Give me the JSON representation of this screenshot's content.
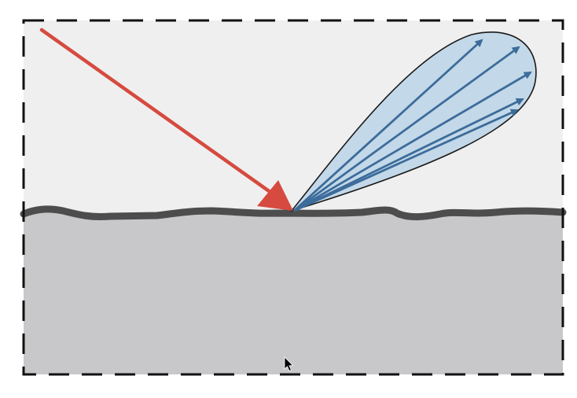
{
  "diagram": {
    "colors": {
      "page_background": "#ffffff",
      "air_background": "#efefef",
      "material_fill": "#c8c8ca",
      "surface_line": "#4d4d4d",
      "frame_dash": "#111111",
      "incident_ray": "#d64a3f",
      "lobe_fill": "#c3d8e8",
      "lobe_outline": "#1a1a1a",
      "reflected_rays": "#3c6c9a",
      "cursor": "#000000"
    },
    "incident_ray": {
      "label": ""
    },
    "reflected_lobe": {
      "label": "",
      "ray_count": 5
    },
    "cursor_icon": "mouse-pointer-icon"
  }
}
